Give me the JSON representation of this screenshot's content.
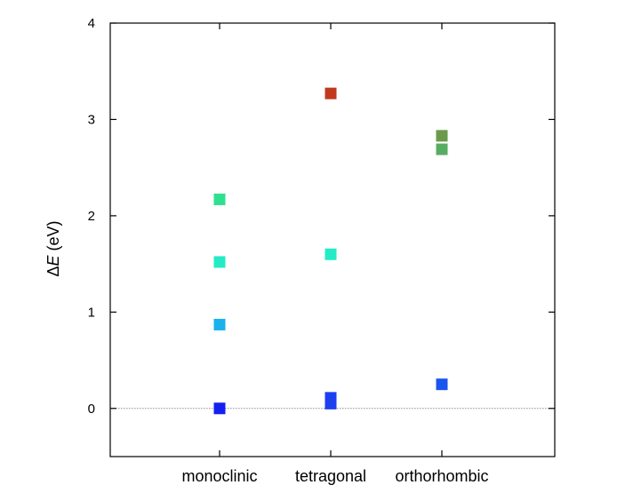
{
  "chart_data": {
    "type": "scatter",
    "title": "",
    "xlabel": "",
    "ylabel": {
      "prefix": "Δ",
      "symbol": "E",
      "unit": " (eV)"
    },
    "categories": [
      "monoclinic",
      "tetragonal",
      "orthorhombic"
    ],
    "ylim": [
      -0.5,
      4
    ],
    "yticks": [
      0,
      1,
      2,
      3,
      4
    ],
    "zero_line": true,
    "grid": false,
    "legend": "none",
    "points": [
      {
        "category": "monoclinic",
        "y": 2.17,
        "color": "#2fe08e"
      },
      {
        "category": "monoclinic",
        "y": 1.52,
        "color": "#23ebc6"
      },
      {
        "category": "monoclinic",
        "y": 0.87,
        "color": "#1ab1ec"
      },
      {
        "category": "monoclinic",
        "y": 0.0,
        "color": "#1420f0"
      },
      {
        "category": "tetragonal",
        "y": 3.27,
        "color": "#c0391e"
      },
      {
        "category": "tetragonal",
        "y": 1.6,
        "color": "#23ebc6"
      },
      {
        "category": "tetragonal",
        "y": 0.11,
        "color": "#1c3ff0"
      },
      {
        "category": "tetragonal",
        "y": 0.05,
        "color": "#1c3ff0"
      },
      {
        "category": "orthorhombic",
        "y": 2.83,
        "color": "#6a9a4a"
      },
      {
        "category": "orthorhombic",
        "y": 2.69,
        "color": "#58ad62"
      },
      {
        "category": "orthorhombic",
        "y": 0.25,
        "color": "#1c54f0"
      }
    ]
  }
}
